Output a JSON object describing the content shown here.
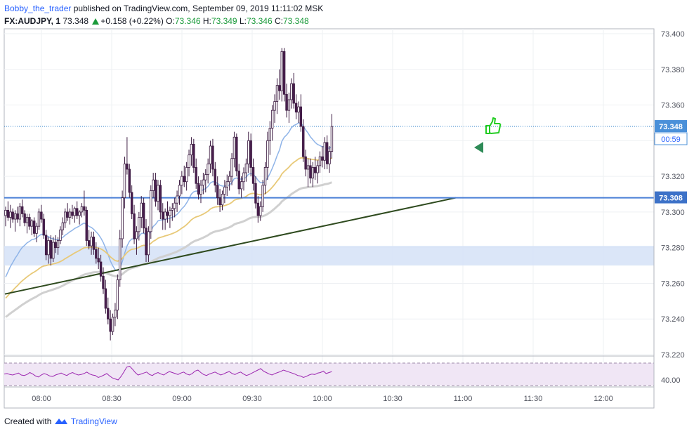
{
  "header": {
    "author": "Bobby_the_trader",
    "published": "published on TradingView.com, September 09, 2019 11:11:02 MSK",
    "symbol": "FX:AUDJPY, 1",
    "last": "73.348",
    "change": "+0.158 (+0.22%)",
    "o_label": "O:",
    "o_value": "73.346",
    "h_label": "H:",
    "h_value": "73.349",
    "l_label": "L:",
    "l_value": "73.346",
    "c_label": "C:",
    "c_value": "73.348"
  },
  "footer": {
    "created_with": "Created with",
    "brand": "TradingView"
  },
  "colors": {
    "up_candle": "#ffffff",
    "down_candle": "#4a1f4f",
    "candle_border": "#3b1a40",
    "ema_fast": "#8fb4e8",
    "ema_mid": "#e8c978",
    "ema_slow": "#d0d0d0",
    "trendline": "#2e4a1e",
    "hline": "#4a7fd6",
    "zone": "#d5e2f7",
    "rsi": "#9c27b0",
    "thumb": "#22cc22",
    "arrow": "#2e8b57"
  },
  "chart_data": {
    "type": "candlestick",
    "symbol": "FX:AUDJPY",
    "timeframe": "1",
    "x_ticks": [
      "08:00",
      "08:30",
      "09:00",
      "09:30",
      "10:00",
      "10:30",
      "11:00",
      "11:30",
      "12:00"
    ],
    "y_ticks": [
      "73.400",
      "73.380",
      "73.360",
      "73.340",
      "73.320",
      "73.300",
      "73.280",
      "73.260",
      "73.240",
      "73.220"
    ],
    "ylim": [
      73.2165,
      73.4035
    ],
    "last_price_label": "73.348",
    "countdown_label": "00:59",
    "hline_label": "73.308",
    "hline_value": 73.308,
    "support_zone": [
      73.27,
      73.281
    ],
    "trendline": [
      [
        "07:40",
        73.254
      ],
      [
        "10:57",
        73.308
      ]
    ],
    "rsi": {
      "level_label": "40.00",
      "values": [
        52,
        53,
        51,
        50,
        52,
        54,
        50,
        49,
        51,
        55,
        52,
        48,
        46,
        50,
        53,
        51,
        48,
        47,
        50,
        52,
        54,
        51,
        49,
        53,
        55,
        52,
        50,
        51,
        53,
        56,
        52,
        50,
        49,
        45,
        47,
        50,
        53,
        48,
        44,
        42,
        40,
        47,
        56,
        66,
        68,
        62,
        55,
        50,
        52,
        54,
        56,
        51,
        49,
        53,
        55,
        52,
        50,
        54,
        57,
        55,
        53,
        51,
        54,
        56,
        52,
        50,
        53,
        58,
        60,
        55,
        51,
        49,
        52,
        54,
        56,
        53,
        50,
        52,
        55,
        57,
        53,
        51,
        54,
        56,
        52,
        49,
        51,
        54,
        57,
        60,
        63,
        58,
        55,
        52,
        50,
        53,
        55,
        57,
        60,
        58,
        56,
        54,
        52,
        49,
        48,
        45,
        47,
        50,
        52,
        51,
        54,
        55,
        58,
        53,
        55,
        57
      ]
    },
    "candles": [
      [
        73.298,
        73.303,
        73.292,
        73.301
      ],
      [
        73.301,
        73.306,
        73.295,
        73.297
      ],
      [
        73.297,
        73.304,
        73.291,
        73.3
      ],
      [
        73.3,
        73.302,
        73.294,
        73.296
      ],
      [
        73.296,
        73.301,
        73.289,
        73.299
      ],
      [
        73.299,
        73.303,
        73.294,
        73.296
      ],
      [
        73.296,
        73.305,
        73.292,
        73.303
      ],
      [
        73.303,
        73.307,
        73.297,
        73.299
      ],
      [
        73.299,
        73.301,
        73.292,
        73.294
      ],
      [
        73.294,
        73.299,
        73.288,
        73.297
      ],
      [
        73.297,
        73.299,
        73.29,
        73.292
      ],
      [
        73.292,
        73.296,
        73.287,
        73.295
      ],
      [
        73.295,
        73.297,
        73.286,
        73.288
      ],
      [
        73.288,
        73.294,
        73.283,
        73.292
      ],
      [
        73.292,
        73.302,
        73.29,
        73.3
      ],
      [
        73.3,
        73.304,
        73.294,
        73.296
      ],
      [
        73.296,
        73.299,
        73.285,
        73.287
      ],
      [
        73.287,
        73.29,
        73.273,
        73.276
      ],
      [
        73.276,
        73.286,
        73.271,
        73.284
      ],
      [
        73.284,
        73.287,
        73.27,
        73.274
      ],
      [
        73.274,
        73.286,
        73.272,
        73.283
      ],
      [
        73.283,
        73.287,
        73.277,
        73.28
      ],
      [
        73.28,
        73.286,
        73.276,
        73.284
      ],
      [
        73.284,
        73.292,
        73.282,
        73.29
      ],
      [
        73.29,
        73.297,
        73.287,
        73.294
      ],
      [
        73.294,
        73.302,
        73.291,
        73.3
      ],
      [
        73.3,
        73.305,
        73.295,
        73.297
      ],
      [
        73.297,
        73.302,
        73.293,
        73.3
      ],
      [
        73.3,
        73.304,
        73.296,
        73.298
      ],
      [
        73.298,
        73.303,
        73.294,
        73.302
      ],
      [
        73.302,
        73.306,
        73.296,
        73.298
      ],
      [
        73.298,
        73.301,
        73.293,
        73.3
      ],
      [
        73.3,
        73.305,
        73.297,
        73.303
      ],
      [
        73.303,
        73.312,
        73.298,
        73.301
      ],
      [
        73.301,
        73.303,
        73.281,
        73.284
      ],
      [
        73.284,
        73.29,
        73.279,
        73.281
      ],
      [
        73.281,
        73.289,
        73.276,
        73.286
      ],
      [
        73.286,
        73.289,
        73.276,
        73.279
      ],
      [
        73.279,
        73.283,
        73.271,
        73.274
      ],
      [
        73.274,
        73.28,
        73.268,
        73.272
      ],
      [
        73.272,
        73.276,
        73.261,
        73.264
      ],
      [
        73.264,
        73.269,
        73.254,
        73.257
      ],
      [
        73.257,
        73.262,
        73.243,
        73.246
      ],
      [
        73.246,
        73.252,
        73.237,
        73.24
      ],
      [
        73.24,
        73.245,
        73.228,
        73.233
      ],
      [
        73.233,
        73.243,
        73.231,
        73.241
      ],
      [
        73.241,
        73.249,
        73.236,
        73.245
      ],
      [
        73.245,
        73.265,
        73.24,
        73.262
      ],
      [
        73.262,
        73.29,
        73.258,
        73.285
      ],
      [
        73.285,
        73.312,
        73.28,
        73.308
      ],
      [
        73.308,
        73.331,
        73.302,
        73.327
      ],
      [
        73.327,
        73.342,
        73.321,
        73.324
      ],
      [
        73.324,
        73.327,
        73.308,
        73.311
      ],
      [
        73.311,
        73.315,
        73.296,
        73.299
      ],
      [
        73.299,
        73.304,
        73.282,
        73.285
      ],
      [
        73.285,
        73.292,
        73.276,
        73.289
      ],
      [
        73.289,
        73.3,
        73.284,
        73.297
      ],
      [
        73.297,
        73.309,
        73.291,
        73.305
      ],
      [
        73.305,
        73.308,
        73.288,
        73.291
      ],
      [
        73.291,
        73.296,
        73.272,
        73.276
      ],
      [
        73.276,
        73.292,
        73.272,
        73.289
      ],
      [
        73.289,
        73.315,
        73.285,
        73.312
      ],
      [
        73.312,
        73.322,
        73.308,
        73.318
      ],
      [
        73.318,
        73.322,
        73.303,
        73.306
      ],
      [
        73.306,
        73.318,
        73.301,
        73.315
      ],
      [
        73.315,
        73.318,
        73.296,
        73.3
      ],
      [
        73.3,
        73.305,
        73.29,
        73.296
      ],
      [
        73.296,
        73.302,
        73.29,
        73.3
      ],
      [
        73.3,
        73.306,
        73.294,
        73.298
      ],
      [
        73.298,
        73.303,
        73.291,
        73.301
      ],
      [
        73.301,
        73.305,
        73.295,
        73.302
      ],
      [
        73.302,
        73.308,
        73.297,
        73.305
      ],
      [
        73.305,
        73.312,
        73.3,
        73.309
      ],
      [
        73.309,
        73.318,
        73.304,
        73.315
      ],
      [
        73.315,
        73.323,
        73.31,
        73.32
      ],
      [
        73.32,
        73.326,
        73.314,
        73.317
      ],
      [
        73.317,
        73.328,
        73.312,
        73.325
      ],
      [
        73.325,
        73.335,
        73.32,
        73.332
      ],
      [
        73.332,
        73.342,
        73.326,
        73.338
      ],
      [
        73.338,
        73.341,
        73.322,
        73.325
      ],
      [
        73.325,
        73.33,
        73.313,
        73.316
      ],
      [
        73.316,
        73.32,
        73.307,
        73.31
      ],
      [
        73.31,
        73.318,
        73.305,
        73.315
      ],
      [
        73.315,
        73.322,
        73.31,
        73.318
      ],
      [
        73.318,
        73.324,
        73.311,
        73.321
      ],
      [
        73.321,
        73.33,
        73.316,
        73.327
      ],
      [
        73.327,
        73.34,
        73.322,
        73.337
      ],
      [
        73.337,
        73.341,
        73.32,
        73.324
      ],
      [
        73.324,
        73.328,
        73.311,
        73.315
      ],
      [
        73.315,
        73.32,
        73.304,
        73.308
      ],
      [
        73.308,
        73.313,
        73.3,
        73.304
      ],
      [
        73.304,
        73.312,
        73.301,
        73.31
      ],
      [
        73.31,
        73.318,
        73.305,
        73.314
      ],
      [
        73.314,
        73.321,
        73.309,
        73.317
      ],
      [
        73.317,
        73.323,
        73.312,
        73.32
      ],
      [
        73.32,
        73.333,
        73.315,
        73.33
      ],
      [
        73.33,
        73.345,
        73.325,
        73.342
      ],
      [
        73.342,
        73.344,
        73.32,
        73.323
      ],
      [
        73.323,
        73.327,
        73.31,
        73.313
      ],
      [
        73.313,
        73.32,
        73.308,
        73.317
      ],
      [
        73.317,
        73.325,
        73.312,
        73.322
      ],
      [
        73.322,
        73.33,
        73.317,
        73.327
      ],
      [
        73.327,
        73.345,
        73.322,
        73.34
      ],
      [
        73.34,
        73.344,
        73.32,
        73.325
      ],
      [
        73.325,
        73.33,
        73.312,
        73.316
      ],
      [
        73.316,
        73.32,
        73.302,
        73.305
      ],
      [
        73.305,
        73.309,
        73.294,
        73.298
      ],
      [
        73.298,
        73.306,
        73.295,
        73.303
      ],
      [
        73.303,
        73.318,
        73.3,
        73.315
      ],
      [
        73.315,
        73.328,
        73.31,
        73.325
      ],
      [
        73.325,
        73.345,
        73.318,
        73.34
      ],
      [
        73.34,
        73.351,
        73.332,
        73.347
      ],
      [
        73.347,
        73.36,
        73.34,
        73.357
      ],
      [
        73.357,
        73.366,
        73.35,
        73.362
      ],
      [
        73.362,
        73.375,
        73.355,
        73.371
      ],
      [
        73.371,
        73.38,
        73.363,
        73.368
      ],
      [
        73.368,
        73.392,
        73.362,
        73.39
      ],
      [
        73.39,
        73.392,
        73.362,
        73.366
      ],
      [
        73.366,
        73.372,
        73.353,
        73.357
      ],
      [
        73.357,
        73.367,
        73.35,
        73.363
      ],
      [
        73.363,
        73.375,
        73.358,
        73.372
      ],
      [
        73.372,
        73.378,
        73.358,
        73.361
      ],
      [
        73.361,
        73.366,
        73.352,
        73.356
      ],
      [
        73.356,
        73.362,
        73.35,
        73.359
      ],
      [
        73.359,
        73.366,
        73.345,
        73.348
      ],
      [
        73.348,
        73.352,
        73.328,
        73.331
      ],
      [
        73.331,
        73.335,
        73.32,
        73.324
      ],
      [
        73.324,
        73.33,
        73.314,
        73.326
      ],
      [
        73.326,
        73.33,
        73.316,
        73.319
      ],
      [
        73.319,
        73.328,
        73.314,
        73.325
      ],
      [
        73.325,
        73.331,
        73.318,
        73.322
      ],
      [
        73.322,
        73.329,
        73.316,
        73.326
      ],
      [
        73.326,
        73.334,
        73.322,
        73.331
      ],
      [
        73.331,
        73.337,
        73.325,
        73.329
      ],
      [
        73.329,
        73.342,
        73.324,
        73.339
      ],
      [
        73.339,
        73.343,
        73.324,
        73.327
      ],
      [
        73.327,
        73.337,
        73.322,
        73.334
      ],
      [
        73.334,
        73.355,
        73.33,
        73.348
      ]
    ]
  }
}
